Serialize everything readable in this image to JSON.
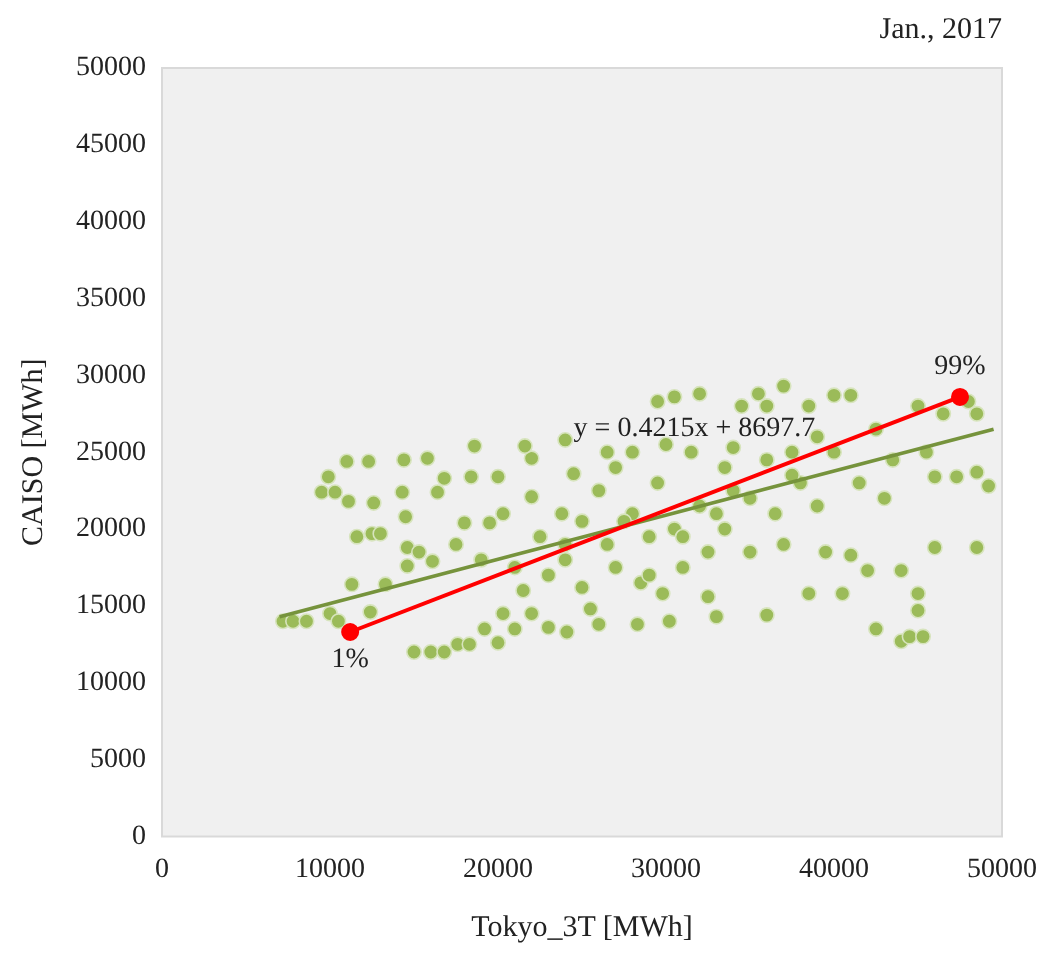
{
  "chart_data": {
    "type": "scatter",
    "title": "Jan., 2017",
    "xlabel": "Tokyo_3T [MWh]",
    "ylabel": "CAISO [MWh]",
    "xlim": [
      0,
      50000
    ],
    "xticks": [
      0,
      10000,
      20000,
      30000,
      40000,
      50000
    ],
    "ylim": [
      0,
      50000
    ],
    "yticks": [
      0,
      5000,
      10000,
      15000,
      20000,
      25000,
      30000,
      35000,
      40000,
      45000,
      50000
    ],
    "grid": false,
    "legend": false,
    "series": [
      {
        "color": "#9bbb59",
        "marker": "circle",
        "x": [
          7200,
          7800,
          8600,
          9500,
          9900,
          10300,
          10000,
          10500,
          11000,
          11100,
          11600,
          11300,
          12300,
          12500,
          12600,
          13000,
          13300,
          12400,
          14400,
          14300,
          14500,
          14600,
          14600,
          15300,
          15800,
          16400,
          16800,
          16100,
          15000,
          16000,
          16800,
          17600,
          18300,
          19200,
          20000,
          20300,
          21000,
          18600,
          18400,
          20000,
          18000,
          19500,
          20300,
          17500,
          19000,
          21000,
          22000,
          21600,
          22000,
          22500,
          23000,
          22000,
          23000,
          24100,
          24000,
          24500,
          23800,
          24000,
          25000,
          25500,
          26000,
          25000,
          26000,
          26500,
          27000,
          27000,
          28000,
          28300,
          28500,
          29000,
          29500,
          29500,
          29800,
          30200,
          30500,
          30500,
          31000,
          31500,
          32000,
          32000,
          32500,
          32500,
          33000,
          33500,
          33500,
          34000,
          34500,
          35000,
          35500,
          36000,
          36000,
          36500,
          37000,
          37000,
          37500,
          38000,
          38500,
          38500,
          39000,
          39500,
          40000,
          40000,
          40500,
          41000,
          41000,
          41500,
          42000,
          42500,
          42500,
          43000,
          43500,
          44000,
          44000,
          44500,
          45000,
          45000,
          45300,
          45000,
          45500,
          46000,
          46000,
          46500,
          47300,
          48000,
          48500,
          48500,
          49200,
          48500,
          26500,
          28000,
          30000,
          34000,
          36000,
          39000,
          27500,
          31000,
          33000,
          35000,
          37500,
          29000,
          24000,
          21500
        ],
        "values": [
          14000,
          14000,
          14000,
          22400,
          23400,
          22400,
          14500,
          14000,
          24400,
          21800,
          19500,
          16400,
          24400,
          19700,
          21700,
          19700,
          16400,
          14600,
          24500,
          22400,
          20800,
          18800,
          17600,
          18500,
          24600,
          22400,
          23300,
          17900,
          12000,
          12000,
          12000,
          12500,
          12500,
          13500,
          12600,
          14500,
          13500,
          25400,
          23400,
          23400,
          20400,
          20400,
          21000,
          19000,
          18000,
          17500,
          24600,
          25400,
          22100,
          19500,
          17000,
          14500,
          13600,
          13300,
          25800,
          23600,
          21000,
          18000,
          16200,
          14800,
          13800,
          20500,
          22500,
          19000,
          24000,
          17500,
          21000,
          13800,
          16500,
          19500,
          28300,
          23000,
          15800,
          14000,
          28600,
          20000,
          17500,
          25000,
          28800,
          21500,
          15600,
          18500,
          14300,
          24000,
          20000,
          22500,
          28000,
          18500,
          28800,
          14400,
          24500,
          21000,
          29300,
          19000,
          25000,
          23000,
          15800,
          28000,
          21500,
          18500,
          28700,
          25000,
          15800,
          28700,
          18300,
          23000,
          17300,
          13500,
          26500,
          22000,
          24500,
          17300,
          12700,
          13000,
          15800,
          14700,
          13000,
          28000,
          25000,
          18800,
          23400,
          27500,
          23400,
          28300,
          23700,
          18800,
          22800,
          27500,
          25000,
          25000,
          25500,
          25300,
          28000,
          26000,
          20500,
          19500,
          21000,
          22000,
          23500,
          17000,
          19000,
          16000
        ]
      },
      {
        "type": "line",
        "color": "#76933c",
        "marker": "none",
        "x": [
          7000,
          49500
        ],
        "values": [
          14300,
          26500
        ]
      },
      {
        "type": "line",
        "color": "#ff0000",
        "marker": "circle",
        "x": [
          11200,
          47500
        ],
        "values": [
          13300,
          28600
        ]
      }
    ],
    "annotations": [
      {
        "text": "y = 0.4215x + 8697.7",
        "x": 24500,
        "y": 26500
      },
      {
        "text": "1%",
        "x": 11200,
        "y": 13300
      },
      {
        "text": "99%",
        "x": 47500,
        "y": 28600
      }
    ]
  }
}
